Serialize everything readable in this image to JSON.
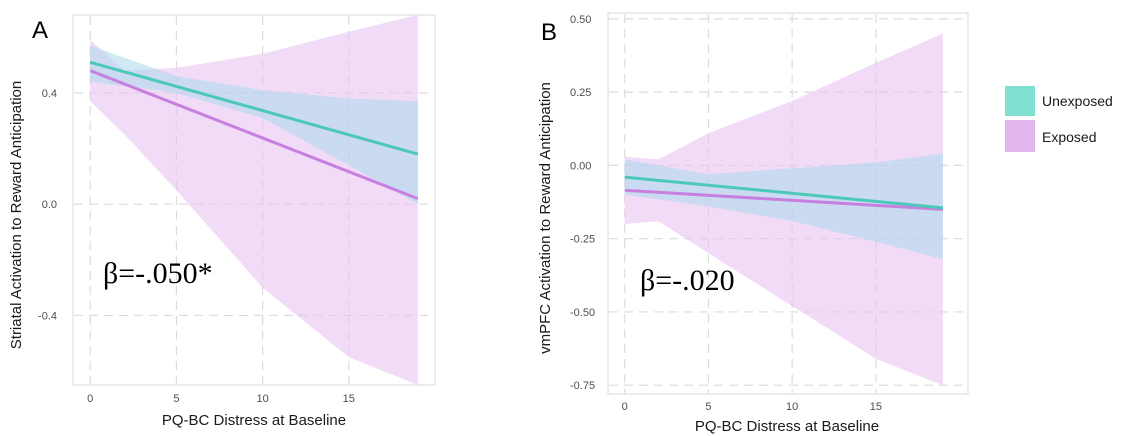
{
  "chart_data": [
    {
      "type": "line",
      "panel_label": "A",
      "xlabel": "PQ-BC Distress at Baseline",
      "ylabel": "Striatal Activation to Reward Anticipation",
      "xlim": [
        -1,
        20
      ],
      "ylim": [
        -0.65,
        0.68
      ],
      "x_ticks": [
        0,
        5,
        10,
        15
      ],
      "x_tick_labels": [
        "0",
        "5",
        "10",
        "15"
      ],
      "y_ticks": [
        -0.4,
        0.0,
        0.4
      ],
      "y_tick_labels": [
        "-0.4",
        "0.0",
        "0.4"
      ],
      "grid": true,
      "annotation": "β=-.050*",
      "series": [
        {
          "name": "Unexposed",
          "color": "#4cc8b8",
          "band_color": "#a9d9ec",
          "x": [
            0,
            19
          ],
          "y": [
            0.51,
            0.18
          ],
          "ci_x": [
            0,
            5,
            10,
            15,
            19
          ],
          "ci_lower": [
            0.44,
            0.4,
            0.31,
            0.14,
            0.0
          ],
          "ci_upper": [
            0.57,
            0.46,
            0.41,
            0.38,
            0.37
          ]
        },
        {
          "name": "Exposed",
          "color": "#c77fe0",
          "band_color": "#e8c3f2",
          "x": [
            0,
            19
          ],
          "y": [
            0.48,
            0.02
          ],
          "ci_x": [
            0,
            2,
            5,
            10,
            15,
            19
          ],
          "ci_lower": [
            0.37,
            0.25,
            0.05,
            -0.3,
            -0.55,
            -0.65
          ],
          "ci_upper": [
            0.59,
            0.48,
            0.49,
            0.54,
            0.62,
            0.68
          ]
        }
      ]
    },
    {
      "type": "line",
      "panel_label": "B",
      "xlabel": "PQ-BC Distress at Baseline",
      "ylabel": "vmPFC Activation to Reward Anticipation",
      "xlim": [
        -1,
        20.5
      ],
      "ylim": [
        -0.78,
        0.52
      ],
      "x_ticks": [
        0,
        5,
        10,
        15
      ],
      "x_tick_labels": [
        "0",
        "5",
        "10",
        "15"
      ],
      "y_ticks": [
        0.5,
        0.25,
        0.0,
        -0.25,
        -0.5,
        -0.75
      ],
      "y_tick_labels": [
        "0.50",
        "0.25",
        "0.00",
        "-0.25",
        "-0.50",
        "-0.75"
      ],
      "grid": true,
      "annotation": "β=-.020",
      "series": [
        {
          "name": "Unexposed",
          "color": "#4cc8b8",
          "band_color": "#a9d9ec",
          "x": [
            0,
            19
          ],
          "y": [
            -0.04,
            -0.145
          ],
          "ci_x": [
            0,
            5,
            10,
            15,
            19
          ],
          "ci_lower": [
            -0.1,
            -0.14,
            -0.19,
            -0.26,
            -0.32
          ],
          "ci_upper": [
            0.02,
            -0.03,
            -0.01,
            0.01,
            0.04
          ]
        },
        {
          "name": "Exposed",
          "color": "#c77fe0",
          "band_color": "#e8c3f2",
          "x": [
            0,
            19
          ],
          "y": [
            -0.085,
            -0.15
          ],
          "ci_x": [
            0,
            2,
            5,
            10,
            15,
            19
          ],
          "ci_lower": [
            -0.2,
            -0.19,
            -0.3,
            -0.48,
            -0.66,
            -0.75
          ],
          "ci_upper": [
            0.03,
            0.02,
            0.11,
            0.22,
            0.35,
            0.45
          ]
        }
      ]
    }
  ],
  "legend": {
    "placement": "right",
    "items": [
      {
        "label": "Unexposed",
        "color": "#7fe0cf"
      },
      {
        "label": "Exposed",
        "color": "#e2b6ef"
      }
    ]
  }
}
